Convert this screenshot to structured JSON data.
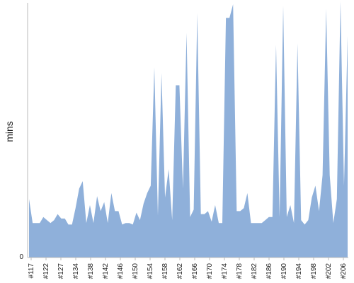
{
  "chart_data": {
    "type": "area",
    "title": "",
    "xlabel": "",
    "ylabel": "mins",
    "ylim": [
      0,
      340
    ],
    "y_ticks": [
      "0"
    ],
    "x_tick_labels": [
      "#117",
      "#122",
      "#127",
      "#134",
      "#138",
      "#142",
      "#146",
      "#150",
      "#154",
      "#158",
      "#162",
      "#166",
      "#170",
      "#174",
      "#178",
      "#182",
      "#186",
      "#190",
      "#194",
      "#198",
      "#202",
      "#206"
    ],
    "grid": false,
    "legend": "none",
    "colors": {
      "fill": "#8fb0da",
      "axis": "#bbbbbb",
      "text": "#222222"
    },
    "series": [
      {
        "values": [
          78,
          46,
          46,
          46,
          54,
          50,
          46,
          50,
          58,
          52,
          52,
          44,
          44,
          66,
          92,
          102,
          46,
          70,
          46,
          82,
          62,
          74,
          46,
          86,
          62,
          62,
          44,
          46,
          46,
          44,
          60,
          50,
          72,
          86,
          96,
          254,
          56,
          246,
          80,
          118,
          50,
          230,
          230,
          92,
          300,
          54,
          64,
          326,
          58,
          58,
          62,
          48,
          70,
          46,
          46,
          320,
          320,
          338,
          62,
          62,
          66,
          86,
          46,
          46,
          46,
          46,
          50,
          54,
          54,
          284,
          54,
          336,
          54,
          70,
          46,
          286,
          50,
          44,
          50,
          80,
          96,
          62,
          110,
          332,
          110,
          46,
          78,
          350,
          96,
          296
        ]
      }
    ]
  }
}
